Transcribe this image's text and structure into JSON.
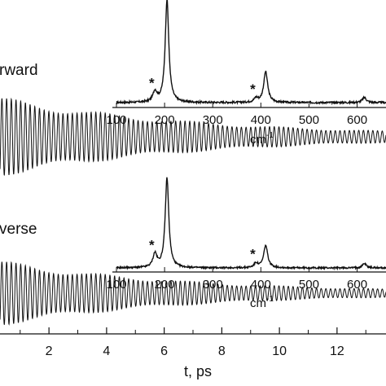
{
  "chart_data": {
    "type": "line",
    "xlabel": "t, ps",
    "xlim": [
      0.3,
      13.7
    ],
    "x_ticks": [
      "2",
      "4",
      "6",
      "8",
      "10",
      "12"
    ],
    "x_tick_values": [
      2,
      4,
      6,
      8,
      10,
      12
    ],
    "grid": false,
    "legend": "none",
    "line_color": "#111111",
    "panels": [
      {
        "label": "rward",
        "signal": {
          "description_axis": "t, ps",
          "oscillation_period_ps": 0.163,
          "initial_amplitude": 1.0,
          "decay_time_ps": 7.0,
          "t_range": [
            0.3,
            13.7
          ]
        },
        "inset": {
          "type": "line",
          "xlabel": "cm-1",
          "xlabel_base": "cm",
          "xlabel_exp": "-1",
          "xlim": [
            100,
            660
          ],
          "x_ticks": [
            "100",
            "200",
            "300",
            "400",
            "500",
            "600"
          ],
          "x_tick_values": [
            100,
            200,
            300,
            400,
            500,
            600
          ],
          "peaks": [
            {
              "x": 180,
              "height": 0.1,
              "marked": true
            },
            {
              "x": 205,
              "height": 1.0,
              "marked": false
            },
            {
              "x": 390,
              "height": 0.04,
              "marked": true
            },
            {
              "x": 410,
              "height": 0.3,
              "marked": false
            },
            {
              "x": 615,
              "height": 0.05,
              "marked": false
            }
          ],
          "marker": "*"
        }
      },
      {
        "label": "verse",
        "signal": {
          "description_axis": "t, ps",
          "oscillation_period_ps": 0.163,
          "initial_amplitude": 0.9,
          "decay_time_ps": 6.5,
          "t_range": [
            0.3,
            13.7
          ]
        },
        "inset": {
          "type": "line",
          "xlabel": "cm-1",
          "xlabel_base": "cm",
          "xlabel_exp": "-1",
          "xlim": [
            100,
            660
          ],
          "x_ticks": [
            "100",
            "200",
            "300",
            "400",
            "500",
            "600"
          ],
          "x_tick_values": [
            100,
            200,
            300,
            400,
            500,
            600
          ],
          "peaks": [
            {
              "x": 180,
              "height": 0.15,
              "marked": true
            },
            {
              "x": 205,
              "height": 1.0,
              "marked": false
            },
            {
              "x": 390,
              "height": 0.05,
              "marked": true
            },
            {
              "x": 410,
              "height": 0.25,
              "marked": false
            },
            {
              "x": 615,
              "height": 0.05,
              "marked": false
            }
          ],
          "marker": "*"
        }
      }
    ]
  }
}
